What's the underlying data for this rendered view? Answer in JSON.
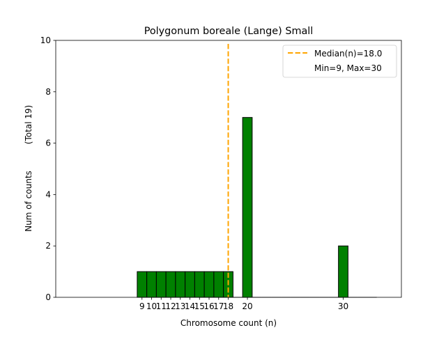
{
  "chart_data": {
    "type": "bar",
    "title": "Polygonum boreale (Lange) Small",
    "xlabel": "Chromosome count (n)",
    "ylabel": "Num of counts",
    "ylabel_total": "(Total 19)",
    "xlim": [
      0,
      36.07
    ],
    "ylim": [
      0,
      10
    ],
    "grid": false,
    "x": [
      9,
      10,
      11,
      12,
      13,
      14,
      15,
      16,
      17,
      18,
      19,
      20,
      21,
      22,
      23,
      24,
      25,
      26,
      27,
      28,
      29,
      30,
      31,
      32,
      33
    ],
    "values": [
      1,
      1,
      1,
      1,
      1,
      1,
      1,
      1,
      1,
      1,
      0,
      7,
      0,
      0,
      0,
      0,
      0,
      0,
      0,
      0,
      0,
      2,
      0,
      0,
      0
    ],
    "xticks": [
      9,
      10,
      11,
      12,
      13,
      14,
      15,
      16,
      17,
      18,
      20,
      30
    ],
    "xtick_labels": [
      "9",
      "10",
      "11",
      "12",
      "13",
      "14",
      "15",
      "16",
      "17",
      "18",
      "20",
      "30"
    ],
    "yticks": [
      0,
      2,
      4,
      6,
      8,
      10
    ],
    "ytick_labels": [
      "0",
      "2",
      "4",
      "6",
      "8",
      "10"
    ],
    "median": 18.0,
    "legend": {
      "placement": "top-right",
      "entries": [
        "Median(n)=18.0",
        "Min=9, Max=30"
      ]
    },
    "colors": {
      "bar": "#008000",
      "median": "#ffa500",
      "edge": "#000000"
    }
  }
}
